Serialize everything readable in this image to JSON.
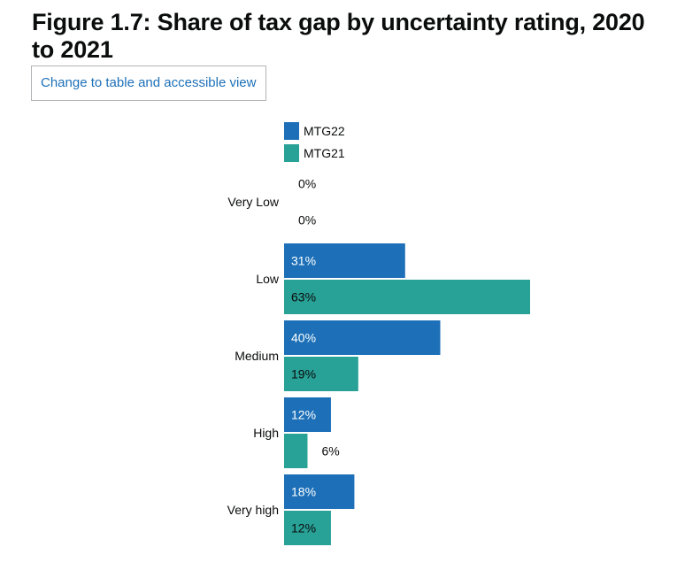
{
  "page": {
    "title": "Figure 1.7: Share of tax gap by uncertainty rating, 2020 to 2021",
    "toggle_label": "Change to table and accessible view"
  },
  "colors": {
    "MTG22": "#1d70b8",
    "MTG21": "#28a197",
    "text": "#0b0c0c",
    "label_on_bar": "#ffffff"
  },
  "chart_data": {
    "type": "bar",
    "orientation": "horizontal",
    "title": "Figure 1.7: Share of tax gap by uncertainty rating, 2020 to 2021",
    "categories": [
      "Very Low",
      "Low",
      "Medium",
      "High",
      "Very high"
    ],
    "series": [
      {
        "name": "MTG22",
        "values": [
          0,
          31,
          40,
          12,
          18
        ],
        "labels": [
          "0%",
          "31%",
          "40%",
          "12%",
          "18%"
        ]
      },
      {
        "name": "MTG21",
        "values": [
          0,
          63,
          19,
          6,
          12
        ],
        "labels": [
          "0%",
          "63%",
          "19%",
          "6%",
          "12%"
        ]
      }
    ],
    "xlim": [
      0,
      63
    ],
    "unit": "%",
    "legend_position": "top",
    "grid": false
  }
}
